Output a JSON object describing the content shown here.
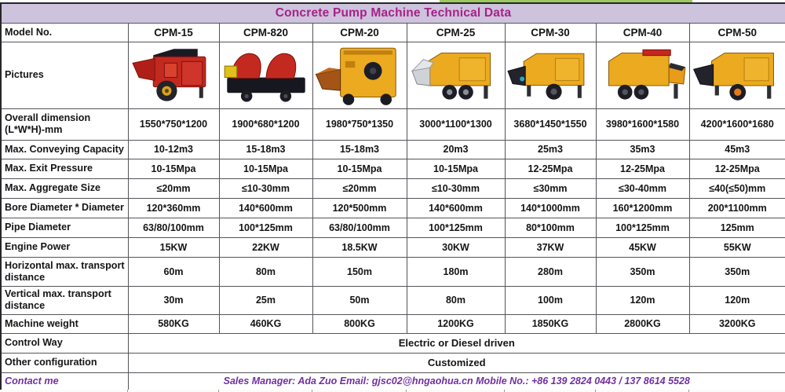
{
  "page": {
    "title": "Concrete Pump Machine Technical Data"
  },
  "colors": {
    "title_bg": "#cdc3dc",
    "title_text": "#a92089",
    "contact_text": "#7030a0",
    "top_strip_green": "#9cc95e",
    "machine_red": "#c4291f",
    "machine_yellow": "#ecaa20"
  },
  "model_row": {
    "label": "Model No.",
    "models": [
      "CPM-15",
      "CPM-820",
      "CPM-20",
      "CPM-25",
      "CPM-30",
      "CPM-40",
      "CPM-50"
    ]
  },
  "pictures_row": {
    "label": "Pictures",
    "machines": [
      {
        "model": "CPM-15",
        "style": "red-trailer-pump"
      },
      {
        "model": "CPM-820",
        "style": "dual-red-pump"
      },
      {
        "model": "CPM-20",
        "style": "yellow-front-pump"
      },
      {
        "model": "CPM-25",
        "style": "yellow-pump-gray-hopper"
      },
      {
        "model": "CPM-30",
        "style": "yellow-pump-dark-hopper"
      },
      {
        "model": "CPM-40",
        "style": "yellow-pump-red-deck"
      },
      {
        "model": "CPM-50",
        "style": "yellow-pump-orange-hub"
      }
    ]
  },
  "specs": [
    {
      "label": "Overall dimension (L*W*H)-mm",
      "values": [
        "1550*750*1200",
        "1900*680*1200",
        "1980*750*1350",
        "3000*1100*1300",
        "3680*1450*1550",
        "3980*1600*1580",
        "4200*1600*1680"
      ]
    },
    {
      "label": "Max. Conveying Capacity",
      "values": [
        "10-12m3",
        "15-18m3",
        "15-18m3",
        "20m3",
        "25m3",
        "35m3",
        "45m3"
      ]
    },
    {
      "label": "Max. Exit Pressure",
      "values": [
        "10-15Mpa",
        "10-15Mpa",
        "10-15Mpa",
        "10-15Mpa",
        "12-25Mpa",
        "12-25Mpa",
        "12-25Mpa"
      ]
    },
    {
      "label": "Max. Aggregate Size",
      "values": [
        "≤20mm",
        "≤10-30mm",
        "≤20mm",
        "≤10-30mm",
        "≤30mm",
        "≤30-40mm",
        "≤40(≤50)mm"
      ]
    },
    {
      "label": "Bore Diameter * Diameter",
      "values": [
        "120*360mm",
        "140*600mm",
        "120*500mm",
        "140*600mm",
        "140*1000mm",
        "160*1200mm",
        "200*1100mm"
      ]
    },
    {
      "label": "Pipe Diameter",
      "values": [
        "63/80/100mm",
        "100*125mm",
        "63/80/100mm",
        "100*125mm",
        "80*100mm",
        "100*125mm",
        "125mm"
      ]
    },
    {
      "label": "Engine Power",
      "values": [
        "15KW",
        "22KW",
        "18.5KW",
        "30KW",
        "37KW",
        "45KW",
        "55KW"
      ]
    },
    {
      "label": "Horizontal max. transport distance",
      "values": [
        "60m",
        "80m",
        "150m",
        "180m",
        "280m",
        "350m",
        "350m"
      ]
    },
    {
      "label": "Vertical max. transport distance",
      "values": [
        "30m",
        "25m",
        "50m",
        "80m",
        "100m",
        "120m",
        "120m"
      ]
    },
    {
      "label": "Machine weight",
      "values": [
        "580KG",
        "460KG",
        "800KG",
        "1200KG",
        "1850KG",
        "2800KG",
        "3200KG"
      ]
    }
  ],
  "span_rows": [
    {
      "label": "Control Way",
      "value": "Electric or Diesel driven"
    },
    {
      "label": "Other configuration",
      "value": "Customized"
    }
  ],
  "contact_row": {
    "label": "Contact me",
    "value": "Sales Manager: Ada Zuo  Email: gjsc02@hngaohua.cn  Mobile No.: +86 139 2824 0443 / 137 8614 5528"
  }
}
